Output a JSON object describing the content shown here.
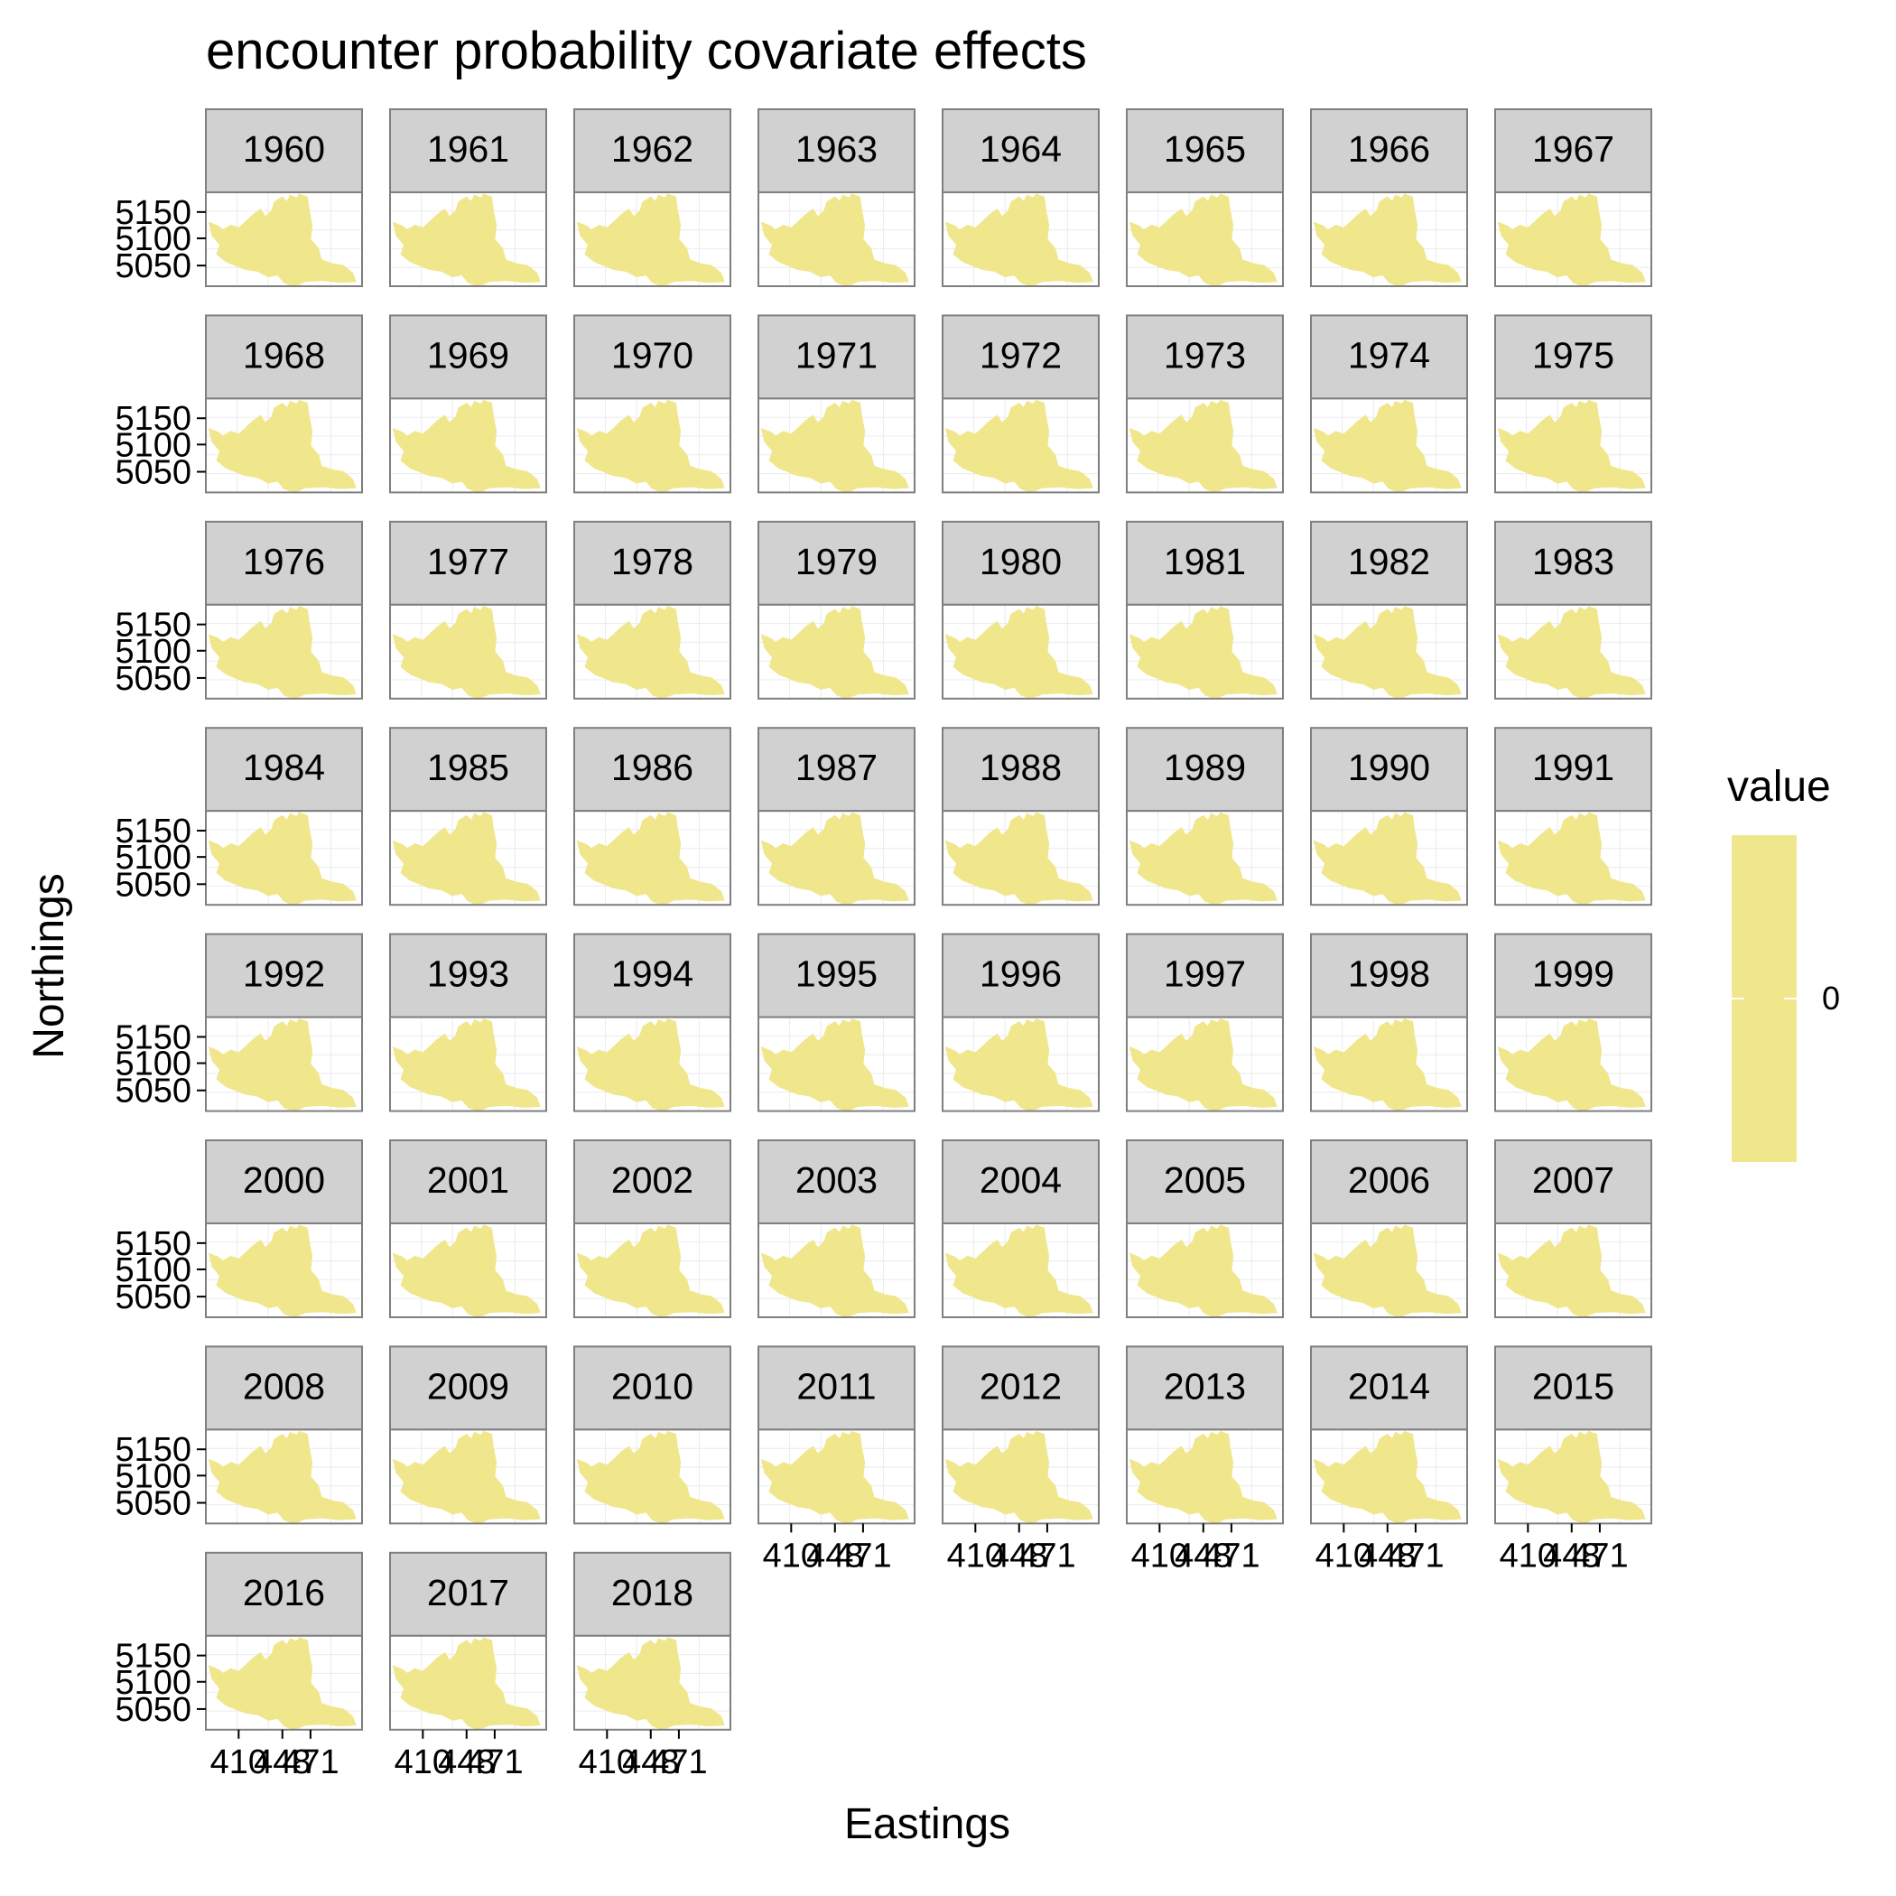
{
  "chart_data": {
    "type": "heatmap",
    "title": "encounter probability covariate effects",
    "xlabel": "Eastings",
    "ylabel": "Northings",
    "panels": [
      "1960",
      "1961",
      "1962",
      "1963",
      "1964",
      "1965",
      "1966",
      "1967",
      "1968",
      "1969",
      "1970",
      "1971",
      "1972",
      "1973",
      "1974",
      "1975",
      "1976",
      "1977",
      "1978",
      "1979",
      "1980",
      "1981",
      "1982",
      "1983",
      "1984",
      "1985",
      "1986",
      "1987",
      "1988",
      "1989",
      "1990",
      "1991",
      "1992",
      "1993",
      "1994",
      "1995",
      "1996",
      "1997",
      "1998",
      "1999",
      "2000",
      "2001",
      "2002",
      "2003",
      "2004",
      "2005",
      "2006",
      "2007",
      "2008",
      "2009",
      "2010",
      "2011",
      "2012",
      "2013",
      "2014",
      "2015",
      "2016",
      "2017",
      "2018"
    ],
    "panel_columns": 8,
    "y_ticks": [
      5150,
      5100,
      5050
    ],
    "y_tick_labels": [
      "5150",
      "5100",
      "5050"
    ],
    "x_tick_labels": [
      "410",
      "448",
      "471"
    ],
    "value": 0,
    "fill_color": "#F0E68C",
    "legend": {
      "title": "value",
      "position": "right",
      "breaks": [
        0
      ],
      "break_labels": [
        "0"
      ]
    }
  }
}
